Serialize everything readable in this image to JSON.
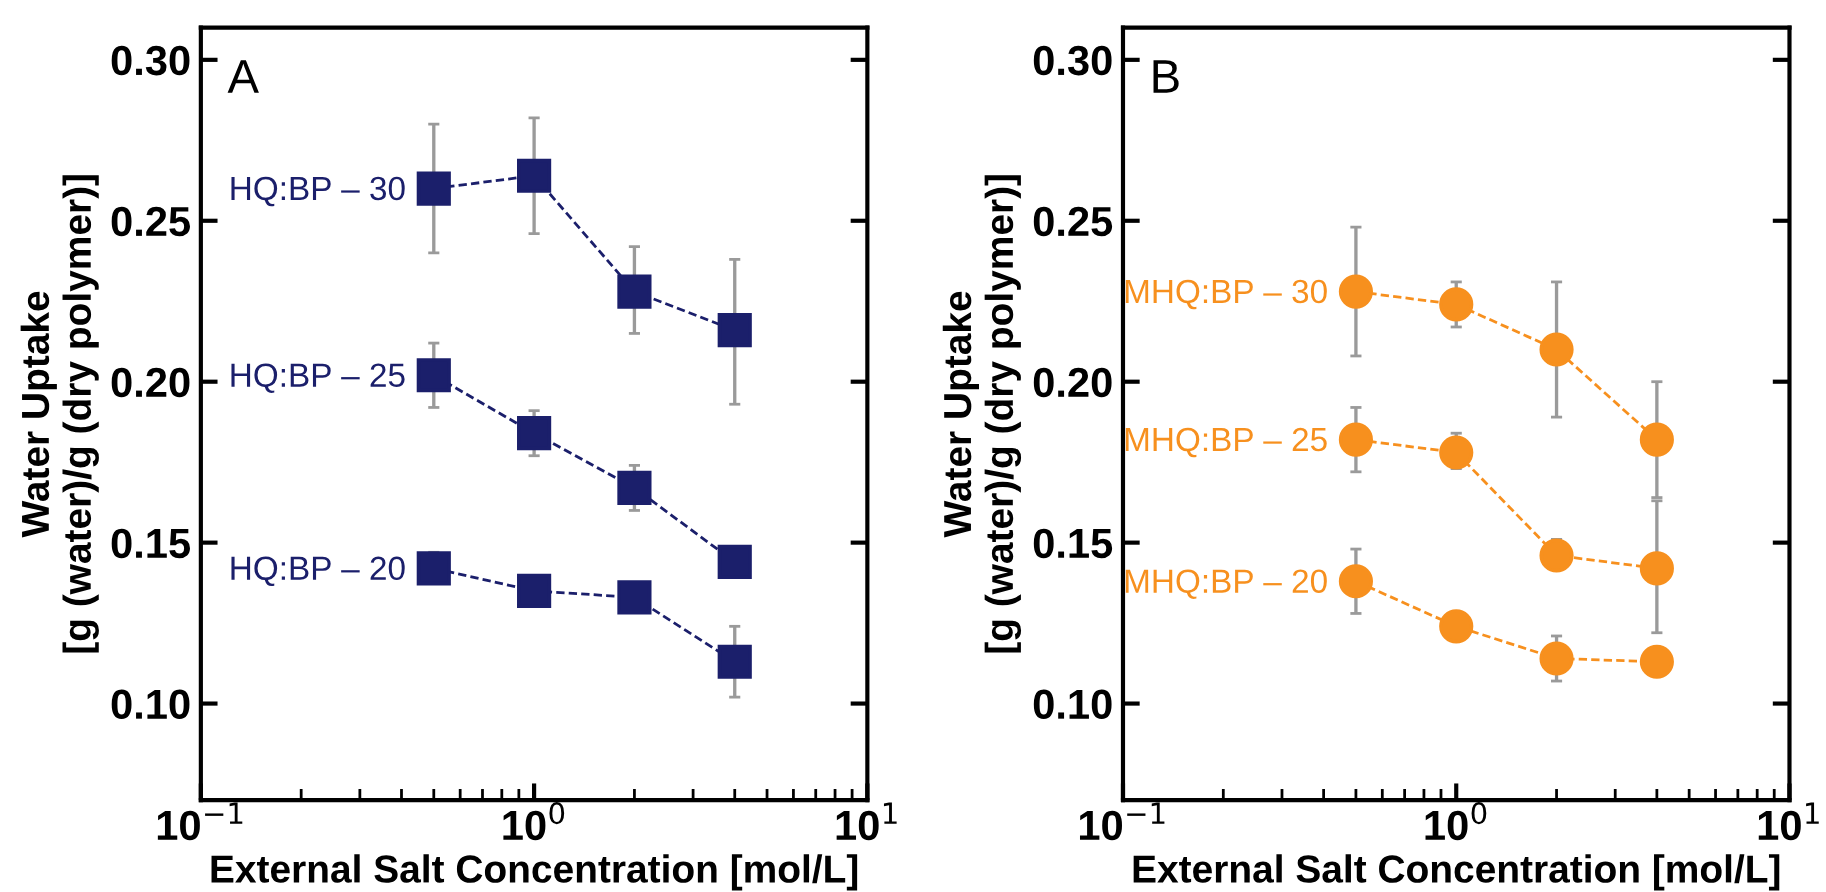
{
  "chart_data": [
    {
      "type": "line",
      "xlabel": "External Salt Concentration [mol/L]",
      "ylabel": "Water Uptake\n[g (water)/g (dry polymer)]",
      "annotations": [
        "A"
      ],
      "log": "x",
      "xlim": [
        0.1,
        10
      ],
      "xticks": [
        {
          "value": 0.1,
          "label": "10$^{−1}$"
        },
        {
          "value": 1,
          "label": "10$^{0}$"
        },
        {
          "value": 10,
          "label": "10$^{1}$"
        }
      ],
      "ylim": [
        0.07,
        0.31
      ],
      "yticks": [
        {
          "value": 0.1,
          "label": "0.10"
        },
        {
          "value": 0.15,
          "label": "0.15"
        },
        {
          "value": 0.2,
          "label": "0.20"
        },
        {
          "value": 0.25,
          "label": "0.25"
        },
        {
          "value": 0.3,
          "label": "0.30"
        }
      ],
      "grid": false,
      "line_style": "dashed",
      "marker": "square",
      "x": [
        0.5,
        1,
        2,
        4
      ],
      "series": [
        {
          "name": "HQ:BP – 30",
          "color": "#1b1f6b",
          "values": [
            0.26,
            0.264,
            0.228,
            0.216
          ],
          "errors": [
            [
              0.24,
              0.28
            ],
            [
              0.246,
              0.282
            ],
            [
              0.215,
              0.242
            ],
            [
              0.193,
              0.238
            ]
          ]
        },
        {
          "name": "HQ:BP – 25",
          "color": "#1b1f6b",
          "values": [
            0.202,
            0.184,
            0.167,
            0.144
          ],
          "errors": [
            [
              0.192,
              0.212
            ],
            [
              0.177,
              0.191
            ],
            [
              0.16,
              0.174
            ],
            null
          ]
        },
        {
          "name": "HQ:BP – 20",
          "color": "#1b1f6b",
          "values": [
            0.142,
            0.135,
            0.133,
            0.113
          ],
          "errors": [
            [
              0.138,
              0.147
            ],
            null,
            null,
            [
              0.102,
              0.124
            ]
          ]
        }
      ]
    },
    {
      "type": "line",
      "xlabel": "External Salt Concentration [mol/L]",
      "ylabel": "Water Uptake\n[g (water)/g (dry polymer)]",
      "annotations": [
        "B"
      ],
      "log": "x",
      "xlim": [
        0.1,
        10
      ],
      "xticks": [
        {
          "value": 0.1,
          "label": "10$^{−1}$"
        },
        {
          "value": 1,
          "label": "10$^{0}$"
        },
        {
          "value": 10,
          "label": "10$^{1}$"
        }
      ],
      "ylim": [
        0.07,
        0.31
      ],
      "yticks": [
        {
          "value": 0.1,
          "label": "0.10"
        },
        {
          "value": 0.15,
          "label": "0.15"
        },
        {
          "value": 0.2,
          "label": "0.20"
        },
        {
          "value": 0.25,
          "label": "0.25"
        },
        {
          "value": 0.3,
          "label": "0.30"
        }
      ],
      "grid": false,
      "line_style": "dashed",
      "marker": "circle",
      "x": [
        0.5,
        1,
        2,
        4
      ],
      "series": [
        {
          "name": "MHQ:BP – 30",
          "color": "#f7901e",
          "values": [
            0.228,
            0.224,
            0.21,
            0.182
          ],
          "errors": [
            [
              0.208,
              0.248
            ],
            [
              0.217,
              0.231
            ],
            [
              0.189,
              0.231
            ],
            [
              0.164,
              0.2
            ]
          ]
        },
        {
          "name": "MHQ:BP – 25",
          "color": "#f7901e",
          "values": [
            0.182,
            0.178,
            0.146,
            0.142
          ],
          "errors": [
            [
              0.172,
              0.192
            ],
            [
              0.173,
              0.184
            ],
            [
              0.142,
              0.151
            ],
            [
              0.122,
              0.163
            ]
          ]
        },
        {
          "name": "MHQ:BP – 20",
          "color": "#f7901e",
          "values": [
            0.138,
            0.124,
            0.114,
            0.113
          ],
          "errors": [
            [
              0.128,
              0.148
            ],
            null,
            [
              0.107,
              0.121
            ],
            null
          ]
        }
      ]
    }
  ]
}
